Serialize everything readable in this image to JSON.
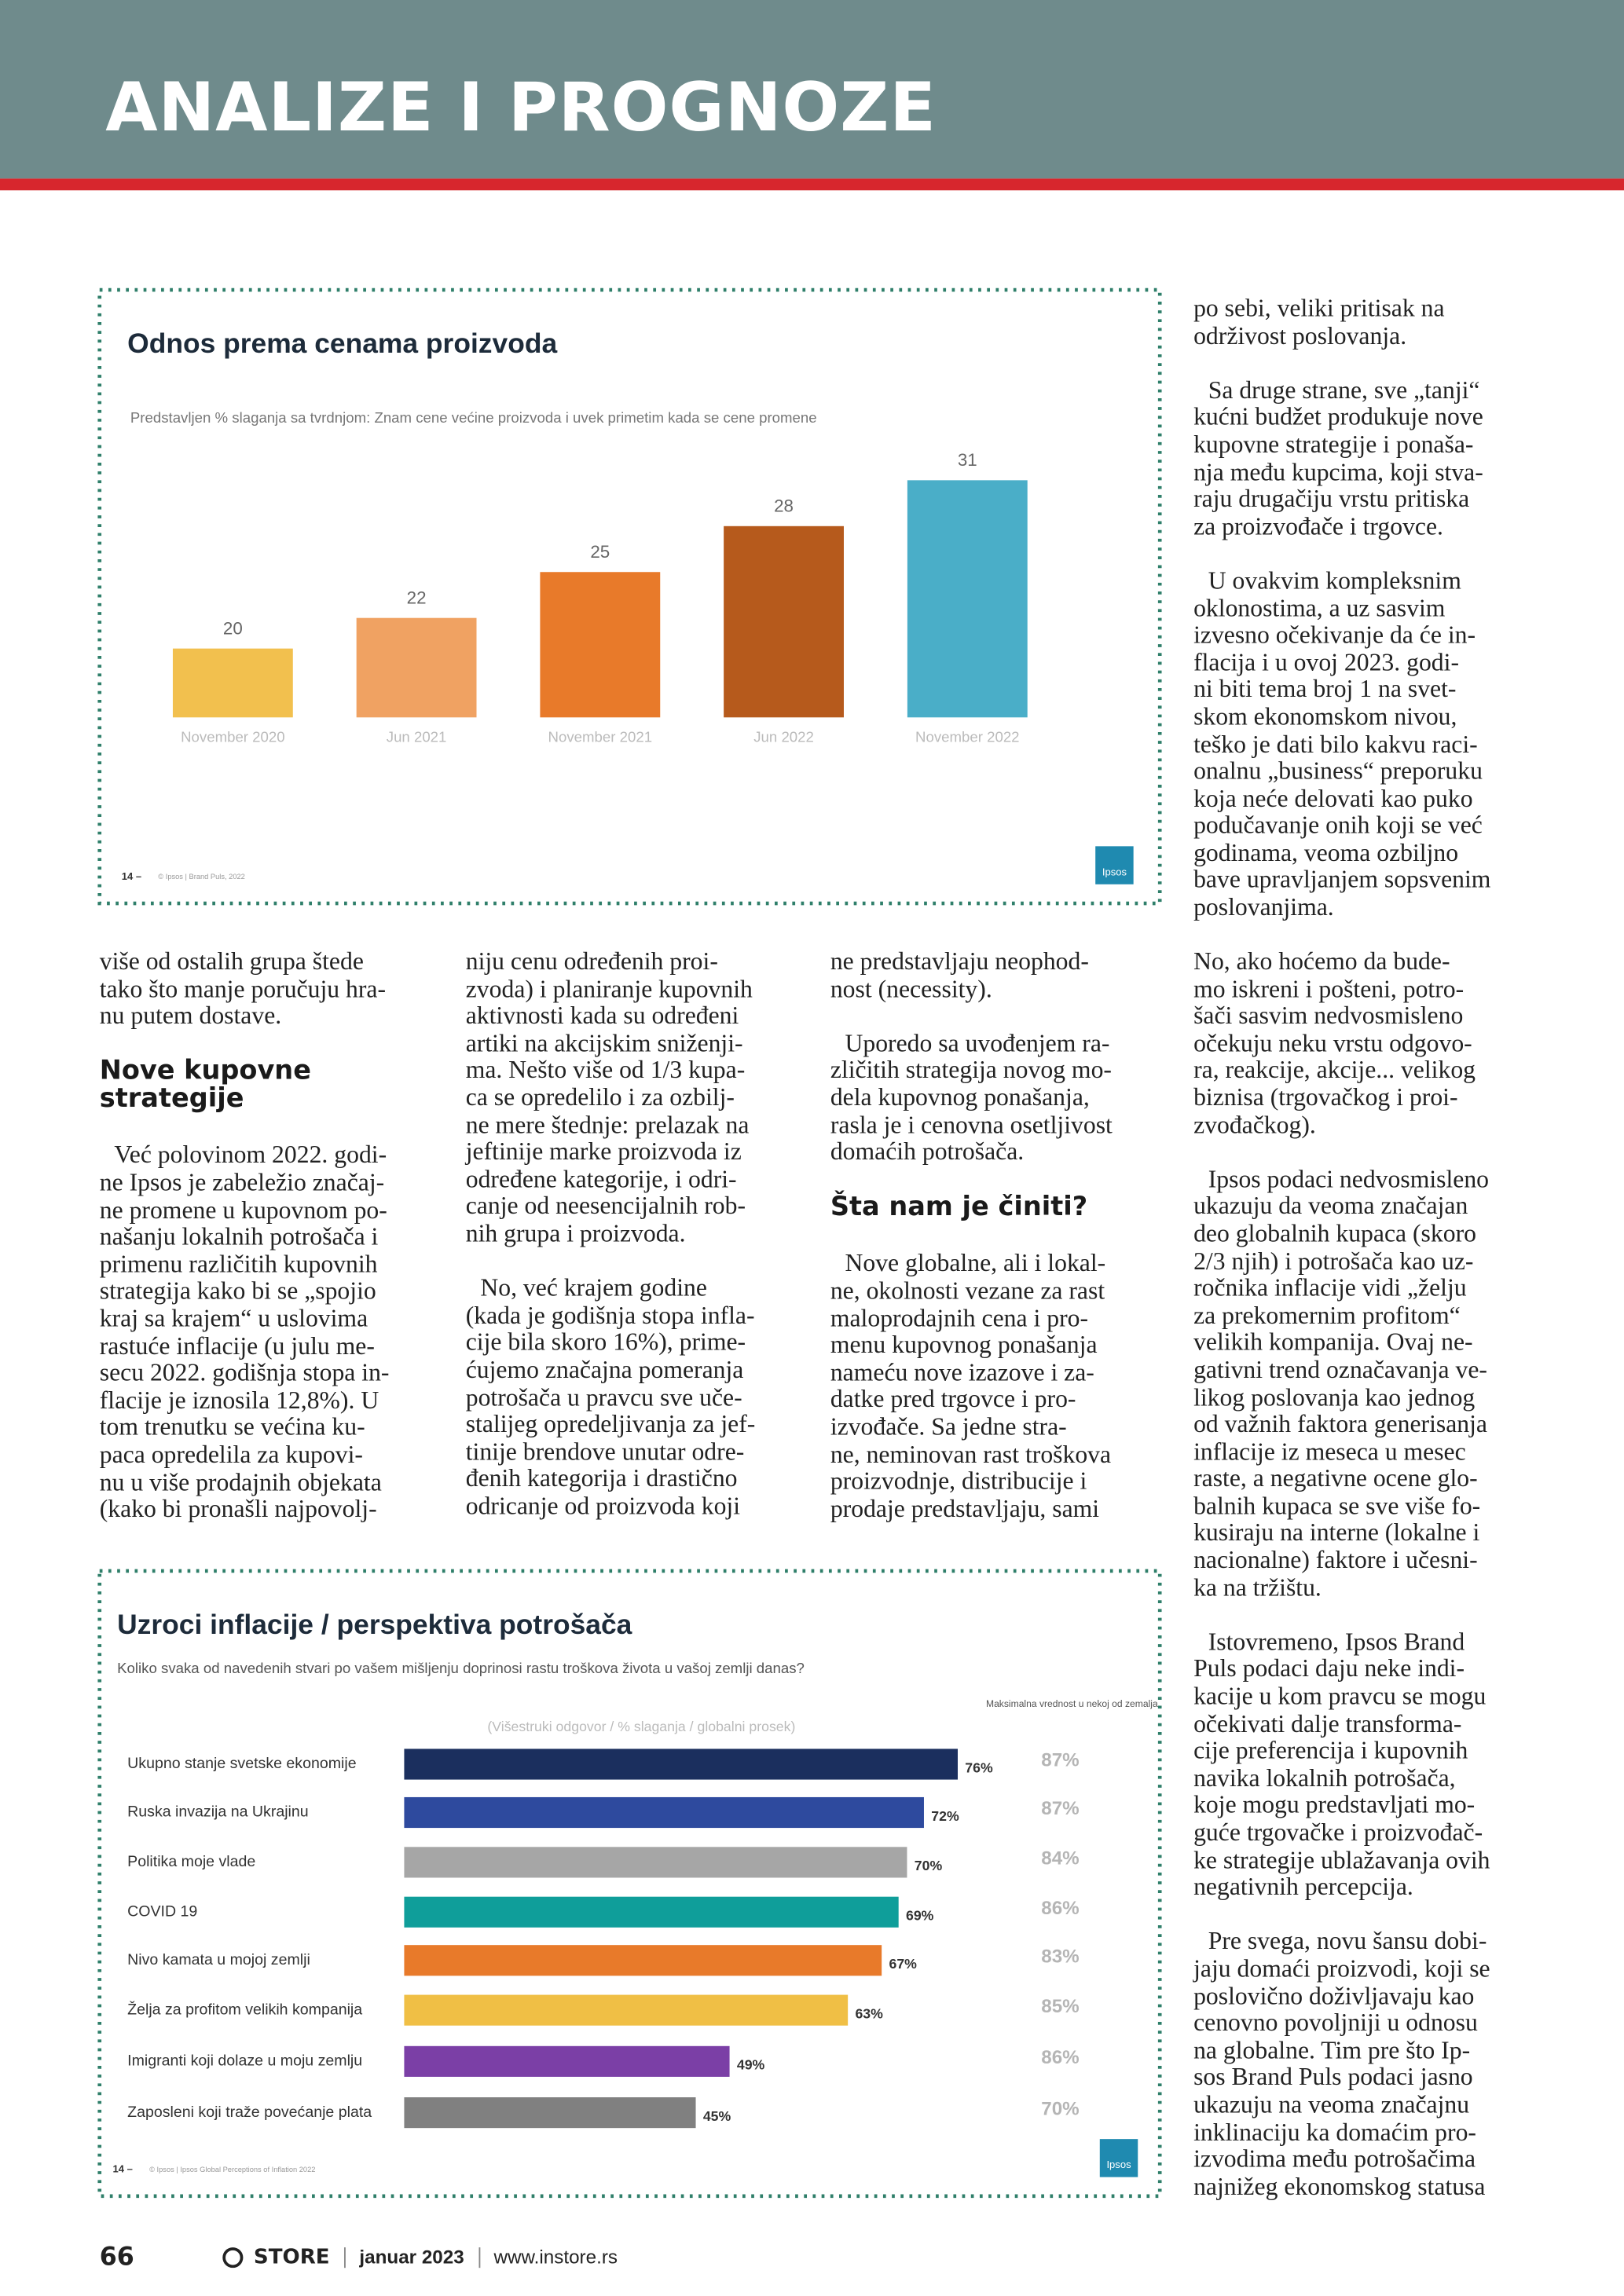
{
  "header": {
    "title": "ANALIZE I PROGNOZE"
  },
  "chart_data": [
    {
      "type": "bar",
      "title": "Odnos prema cenama proizvoda",
      "subtitle": "Predstavljen % slaganja sa tvrdnjom: Znam cene većine proizvoda i uvek primetim kada se cene promene",
      "categories": [
        "November 2020",
        "Jun 2021",
        "November 2021",
        "Jun 2022",
        "November 2022"
      ],
      "values": [
        20,
        22,
        25,
        28,
        31
      ],
      "colors": [
        "#f2c04e",
        "#f0a262",
        "#e87a2a",
        "#b65a1c",
        "#4aaec8"
      ],
      "ylim": [
        15.5,
        31
      ],
      "footnote_page": "14 –",
      "footnote": "© Ipsos | Brand Puls, 2022",
      "logo": "Ipsos"
    },
    {
      "type": "barh",
      "title": "Uzroci inflacije / perspektiva potrošača",
      "subtitle": "Koliko svaka od navedenih stvari po vašem mišljenju doprinosi rastu troškova života u vašoj zemlji danas?",
      "note": "(Višestruki odgovor / % slaganja / globalni prosek)",
      "categories": [
        "Ukupno stanje svetske ekonomije",
        "Ruska invazija na Ukrajinu",
        "Politika moje vlade",
        "COVID 19",
        "Nivo kamata u mojoj zemlji",
        "Želja za profitom velikih kompanija",
        "Imigranti koji dolaze u moju zemlju",
        "Zaposleni koji traže povećanje plata"
      ],
      "values": [
        76,
        72,
        70,
        69,
        67,
        63,
        49,
        45
      ],
      "value_labels": [
        "76%",
        "72%",
        "70%",
        "69%",
        "67%",
        "63%",
        "49%",
        "45%"
      ],
      "colors": [
        "#1b2f5e",
        "#2e4a9e",
        "#a6a6a6",
        "#0f9e9a",
        "#e87a2a",
        "#f0bf45",
        "#7b3fa6",
        "#808080"
      ],
      "xlim": [
        10.5,
        76
      ],
      "max_header": "Maksimalna vrednost u nekoj od zemalja",
      "max_labels": [
        "87%",
        "87%",
        "84%",
        "86%",
        "83%",
        "85%",
        "86%",
        "70%"
      ],
      "footnote_page": "14 –",
      "footnote": "© Ipsos | Ipsos Global Perceptions of Inflation 2022",
      "logo": "Ipsos"
    }
  ],
  "article": {
    "col4_top": [
      {
        "paragraph": "po sebi, veliki pritisak na\nodrživost poslovanja."
      },
      {
        "paragraph": "Sa druge strane, sve „tanji“\nkućni budžet produkuje nove\nkupovne strategije i ponaša-\nnja među kupcima, koji stva-\nraju drugačiju vrstu pritiska\nza proizvođače i trgovce."
      },
      {
        "paragraph": "U ovakvim kompleksnim\noklonostima, a uz sasvim\nizvesno očekivanje da će in-\nflacija i u ovoj 2023. godi-\nni biti tema broj 1 na svet-\nskom ekonomskom nivou,\nteško je dati bilo kakvu raci-\nonalnu „business“ preporuku\nkoja neće delovati kao puko\npodučavanje onih koji se već\ngodinama, veoma ozbiljno\nbave upravljanjem sopsvenim\nposlovanjima."
      }
    ],
    "col1": [
      {
        "paragraph": "više od ostalih grupa štede\ntako što manje poručuju hra-\nnu putem dostave."
      },
      {
        "heading": "Nove kupovne\nstrategije"
      },
      {
        "paragraph": "Već polovinom 2022. godi-\nne Ipsos je zabeležio značaj-\nne promene u kupovnom po-\nnašanju lokalnih potrošača i\nprimenu različitih kupovnih\nstrategija kako bi se „spojio\nkraj sa krajem“ u uslovima\nrastuće inflacije (u julu me-\nsecu 2022. godišnja stopa in-\nflacije je iznosila 12,8%). U\ntom trenutku se većina ku-\npaca opredelila za kupovi-\nnu u više prodajnih objekata\n(kako bi pronašli najpovolj-"
      }
    ],
    "col2": [
      {
        "paragraph": "niju cenu određenih proi-\nzvoda) i planiranje kupovnih\naktivnosti kada su određeni\nartiki na akcijskim sniženji-\nma. Nešto više od 1/3 kupa-\nca se opredelilo i za ozbilj-\nne mere štednje: prelazak na\njeftinije marke proizvoda iz\nodređene kategorije, i odri-\ncanje od neesencijalnih rob-\nnih grupa i proizvoda."
      },
      {
        "paragraph": "No, već krajem godine\n(kada je godišnja stopa infla-\ncije bila skoro 16%), prime-\nćujemo značajna pomeranja\npotrošača u pravcu sve uče-\nstalijeg opredeljivanja za jef-\ntinije brendove unutar odre-\nđenih kategorija i drastično\nodricanje od proizvoda koji"
      }
    ],
    "col3": [
      {
        "paragraph": "ne predstavljaju neophod-\nnost (necessity)."
      },
      {
        "paragraph": "Uporedo sa uvođenjem ra-\nzličitih strategija novog mo-\ndela kupovnog ponašanja,\nrasla je i cenovna osetljivost\ndomaćih potrošača."
      },
      {
        "heading": "Šta nam je činiti?"
      },
      {
        "paragraph": "Nove globalne, ali i lokal-\nne, okolnosti vezane za rast\nmaloprodajnih cena i pro-\nmenu kupovnog ponašanja\nnameću nove izazove i za-\ndatke pred trgovce i pro-\nizvođače. Sa jedne stra-\nne, neminovan rast troškova\nproizvodnje, distribucije i\nprodaje predstavljaju, sami"
      }
    ],
    "col4_bottom": [
      {
        "paragraph": "No, ako hoćemo da bude-\nmo iskreni i pošteni, potro-\nšači sasvim nedvosmisleno\nočekuju neku vrstu odgovo-\nra, reakcije, akcije... velikog\nbiznisa (trgovačkog i proi-\nzvođačkog)."
      },
      {
        "paragraph": "Ipsos podaci nedvosmisleno\nukazuju da veoma značajan\ndeo globalnih kupaca (skoro\n2/3 njih) i potrošača kao uz-\nročnika inflacije vidi „želju\nza prekomernim profitom“\nvelikih kompanija. Ovaj ne-\ngativni trend označavanja ve-\nlikog poslovanja kao jednog\nod važnih faktora generisanja\ninflacije iz meseca u mesec\nraste, a negativne ocene glo-\nbalnih kupaca se sve više fo-\nkusiraju na interne (lokalne i\nnacionalne) faktore i učesni-\nka na tržištu."
      },
      {
        "paragraph": "Istovremeno, Ipsos Brand\nPuls podaci daju neke indi-\nkacije u kom pravcu se mogu\nočekivati dalje transforma-\ncije preferencija i kupovnih\nnavika lokalnih potrošača,\nkoje mogu predstavljati mo-\nguće trgovačke i proizvođač-\nke strategije ublažavanja ovih\nnegativnih percepcija."
      },
      {
        "paragraph": "Pre svega, novu šansu dobi-\njaju domaći proizvodi, koji se\nposlovično doživljavaju kao\ncenovno povoljniji u odnosu\nna globalne. Tim pre što Ip-\nsos Brand Puls podaci jasno\nukazuju na veoma značajnu\ninklinaciju ka domaćim pro-\nizvodima među potrošačima\nnajnižeg ekonomskog statusa"
      }
    ]
  },
  "footer": {
    "page": "66",
    "brand": "STORE",
    "issue": "januar 2023",
    "url": "www.instore.rs"
  }
}
